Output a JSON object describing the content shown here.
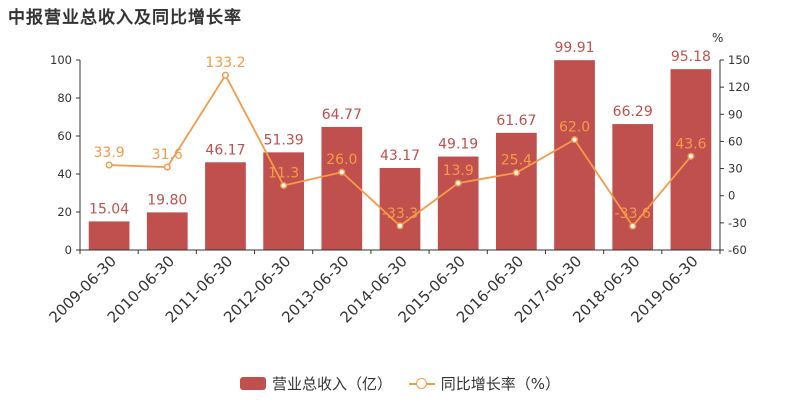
{
  "chart_data": {
    "type": "bar",
    "title": "中报营业总收入及同比增长率",
    "categories": [
      "2009-06-30",
      "2010-06-30",
      "2011-06-30",
      "2012-06-30",
      "2013-06-30",
      "2014-06-30",
      "2015-06-30",
      "2016-06-30",
      "2017-06-30",
      "2018-06-30",
      "2019-06-30"
    ],
    "series": [
      {
        "name": "营业总收入（亿）",
        "type": "bar",
        "axis": "left",
        "values": [
          15.04,
          19.8,
          46.17,
          51.39,
          64.77,
          43.17,
          49.19,
          61.67,
          99.91,
          66.29,
          95.18
        ],
        "labels": [
          "15.04",
          "19.80",
          "46.17",
          "51.39",
          "64.77",
          "43.17",
          "49.19",
          "61.67",
          "99.91",
          "66.29",
          "95.18"
        ],
        "color": "#c0504d"
      },
      {
        "name": "同比增长率（%）",
        "type": "line",
        "axis": "right",
        "values": [
          33.9,
          31.6,
          133.2,
          11.3,
          26.0,
          -33.3,
          13.9,
          25.4,
          62.0,
          -33.6,
          43.6
        ],
        "labels": [
          "33.9",
          "31.6",
          "133.2",
          "11.3",
          "26.0",
          "-33.3",
          "13.9",
          "25.4",
          "62.0",
          "-33.6",
          "43.6"
        ],
        "color": "#f59a48"
      }
    ],
    "y_left": {
      "ylim": [
        0,
        100
      ],
      "ticks": [
        0,
        20,
        40,
        60,
        80,
        100
      ]
    },
    "y_right": {
      "label": "%",
      "ylim": [
        -60,
        150
      ],
      "ticks": [
        -60,
        -30,
        0,
        30,
        60,
        90,
        120,
        150
      ]
    },
    "grid": false,
    "legend_position": "bottom-center"
  },
  "legend": {
    "bar_label": "营业总收入（亿）",
    "line_label": "同比增长率（%）"
  }
}
